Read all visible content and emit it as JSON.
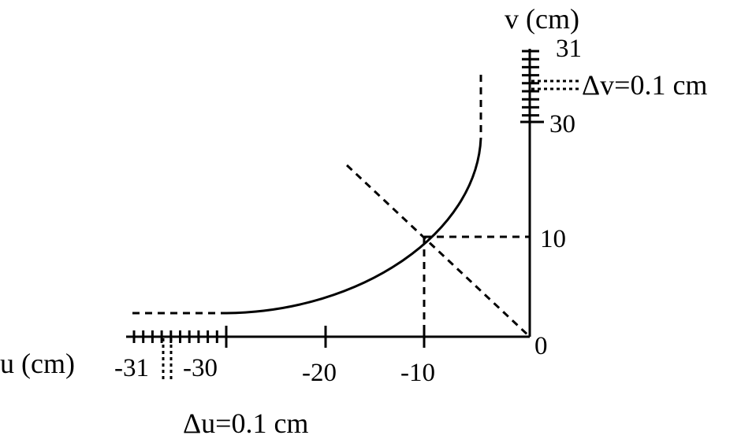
{
  "axes": {
    "u_label": "u (cm)",
    "v_label": "v (cm)",
    "origin_label": "0"
  },
  "u_ticks": {
    "m31": "-31",
    "m30": "-30",
    "m20": "-20",
    "m10": "-10"
  },
  "v_ticks": {
    "p31": "31",
    "p30": "30",
    "p10": "10"
  },
  "annotations": {
    "delta_u": "Δu=0.1 cm",
    "delta_v": "Δv=0.1 cm"
  },
  "intersection_point": {
    "u": -10,
    "v": 10
  },
  "line_color": "#000000"
}
